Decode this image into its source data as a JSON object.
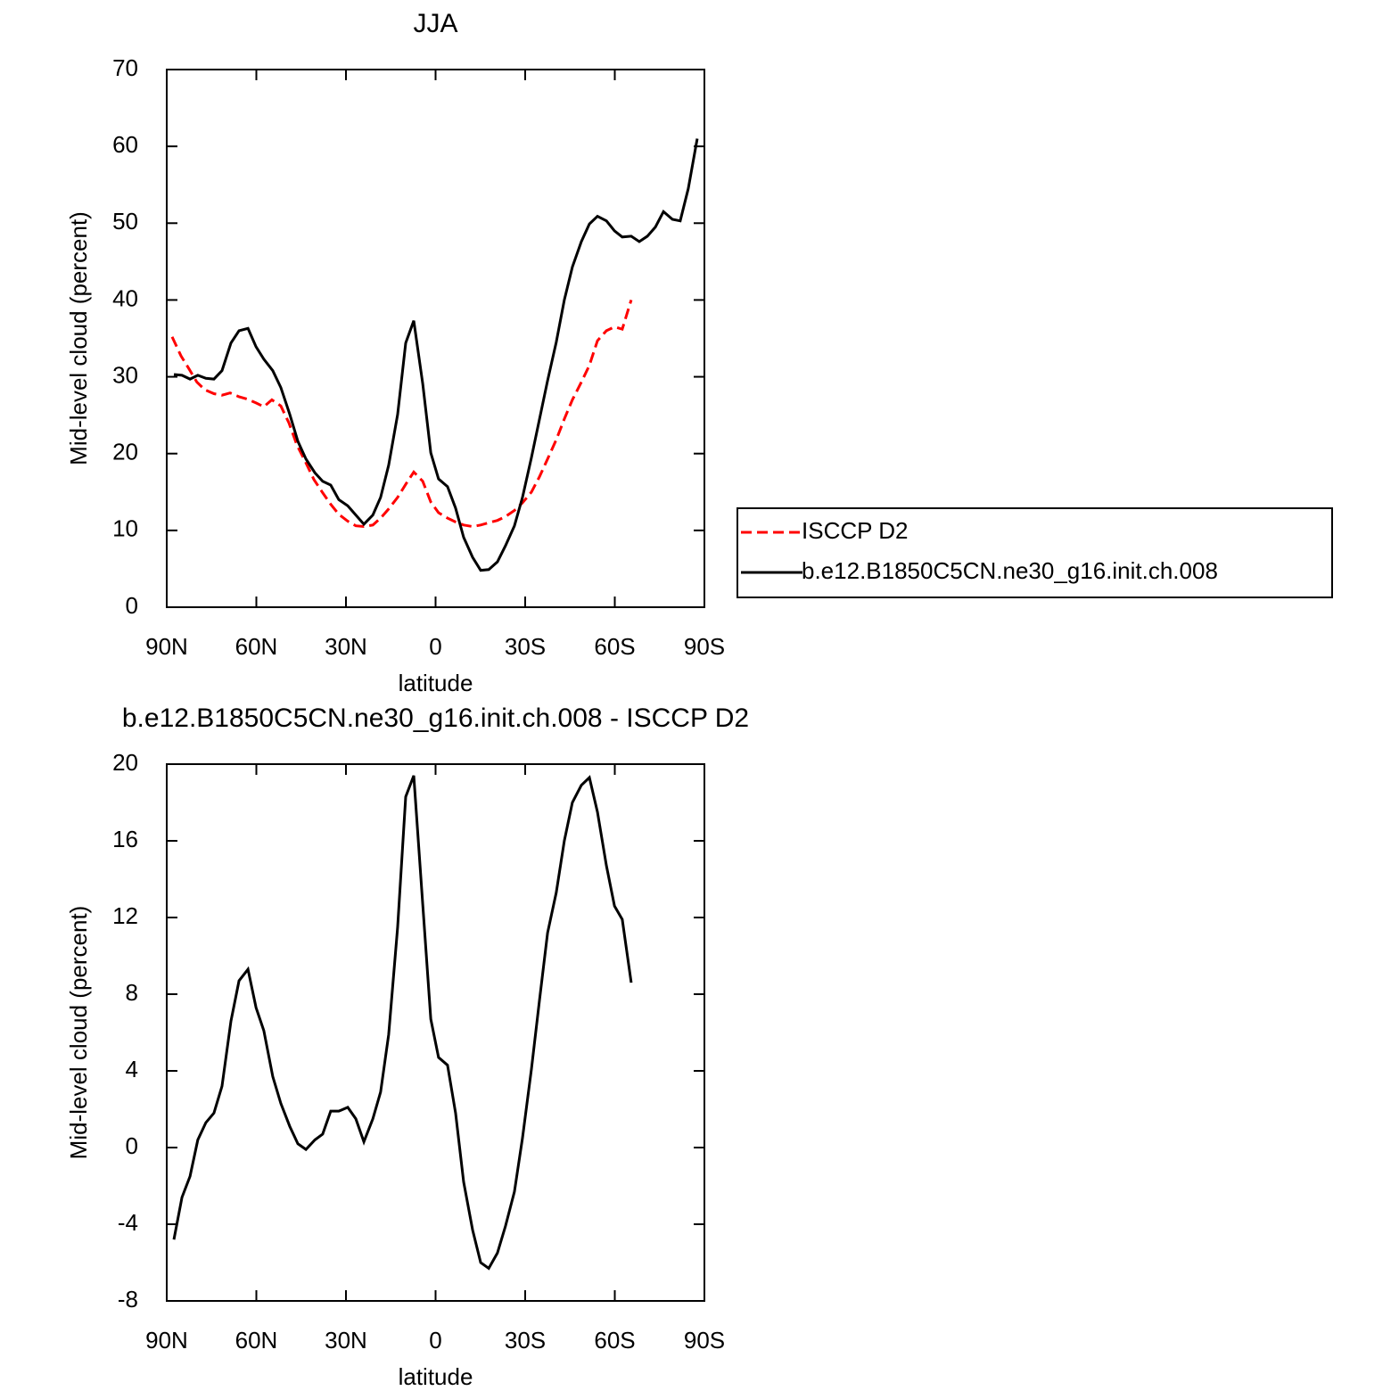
{
  "chart_data": [
    {
      "type": "line",
      "title": "JJA",
      "xlabel": "latitude",
      "ylabel": "Mid-level cloud (percent)",
      "xlim": [
        90,
        -90
      ],
      "xticks": [
        {
          "value": 90,
          "label": "90N"
        },
        {
          "value": 60,
          "label": "60N"
        },
        {
          "value": 30,
          "label": "30N"
        },
        0,
        {
          "value": -30,
          "label": "30S"
        },
        {
          "value": -60,
          "label": "60S"
        },
        {
          "value": -90,
          "label": "90S"
        }
      ],
      "ylim": [
        0,
        70
      ],
      "yticks": [
        0,
        10,
        20,
        30,
        40,
        50,
        60,
        70
      ],
      "legend": "right",
      "series": [
        {
          "name": "ISCCP D2",
          "color": "#ff0000",
          "dashed": true,
          "x": [
            88.2,
            85.2,
            82.5,
            79.9,
            77.2,
            74.2,
            71.5,
            68.8,
            65.8,
            63.1,
            60.1,
            57.5,
            54.8,
            51.8,
            49.1,
            46.4,
            43.4,
            40.7,
            37.8,
            35.1,
            32.4,
            29.4,
            26.7,
            24.0,
            21.0,
            18.4,
            15.7,
            12.7,
            10.0,
            7.3,
            4.3,
            1.6,
            -1.0,
            -4.0,
            -6.7,
            -9.4,
            -12.4,
            -15.1,
            -17.8,
            -20.7,
            -23.4,
            -26.4,
            -29.1,
            -32.1,
            -34.8,
            -37.5,
            -40.4,
            -43.1,
            -45.8,
            -48.8,
            -51.5,
            -54.2,
            -57.2,
            -59.9,
            -62.5,
            -65.5
          ],
          "values": [
            35.2,
            32.7,
            31.0,
            29.3,
            28.3,
            27.8,
            27.6,
            27.9,
            27.4,
            27.1,
            26.6,
            26.1,
            27.0,
            26.2,
            24.0,
            21.1,
            18.8,
            16.6,
            14.9,
            13.4,
            12.1,
            11.2,
            10.6,
            10.5,
            10.7,
            11.6,
            12.8,
            14.3,
            16.0,
            17.6,
            16.4,
            13.7,
            12.3,
            11.6,
            11.1,
            10.7,
            10.5,
            10.7,
            11.0,
            11.3,
            11.8,
            12.6,
            13.6,
            15.0,
            17.0,
            19.3,
            21.8,
            24.5,
            27.0,
            29.3,
            31.5,
            34.7,
            36.0,
            36.5,
            36.2,
            40.0
          ]
        },
        {
          "name": "b.e12.B1850C5CN.ne30_g16.init.ch.008",
          "color": "#000000",
          "dashed": false,
          "x": [
            87.6,
            84.9,
            82.2,
            79.6,
            76.9,
            74.2,
            71.5,
            68.5,
            65.8,
            62.8,
            60.1,
            57.5,
            54.5,
            51.8,
            48.8,
            46.1,
            43.4,
            40.4,
            37.8,
            35.1,
            32.4,
            29.4,
            26.7,
            24.0,
            21.0,
            18.4,
            15.7,
            12.7,
            10.0,
            7.3,
            4.3,
            1.6,
            -1.0,
            -4.0,
            -6.7,
            -9.4,
            -12.4,
            -15.1,
            -17.8,
            -20.7,
            -23.4,
            -26.4,
            -29.1,
            -32.1,
            -34.8,
            -37.5,
            -40.4,
            -43.1,
            -45.8,
            -48.8,
            -51.5,
            -54.2,
            -57.2,
            -59.9,
            -62.5,
            -65.5,
            -68.2,
            -70.9,
            -73.6,
            -76.3,
            -79.3,
            -81.9,
            -84.6,
            -87.6
          ],
          "values": [
            30.3,
            30.2,
            29.7,
            30.2,
            29.8,
            29.7,
            30.8,
            34.4,
            36.0,
            36.3,
            33.9,
            32.3,
            30.8,
            28.6,
            25.1,
            21.6,
            19.3,
            17.5,
            16.4,
            15.9,
            14.0,
            13.2,
            12.0,
            10.8,
            12.0,
            14.3,
            18.5,
            25.1,
            34.4,
            37.3,
            29.1,
            20.1,
            16.7,
            15.7,
            12.9,
            9.1,
            6.5,
            4.8,
            4.9,
            5.9,
            8.0,
            10.6,
            14.3,
            19.5,
            24.5,
            29.5,
            34.5,
            40.0,
            44.3,
            47.6,
            49.9,
            50.9,
            50.3,
            49.0,
            48.2,
            48.3,
            47.6,
            48.3,
            49.5,
            51.5,
            50.5,
            50.3,
            54.5,
            61.0
          ]
        }
      ]
    },
    {
      "type": "line",
      "title": "b.e12.B1850C5CN.ne30_g16.init.ch.008 - ISCCP D2",
      "xlabel": "latitude",
      "ylabel": "Mid-level cloud (percent)",
      "xlim": [
        90,
        -90
      ],
      "xticks": [
        {
          "value": 90,
          "label": "90N"
        },
        {
          "value": 60,
          "label": "60N"
        },
        {
          "value": 30,
          "label": "30N"
        },
        0,
        {
          "value": -30,
          "label": "30S"
        },
        {
          "value": -60,
          "label": "60S"
        },
        {
          "value": -90,
          "label": "90S"
        }
      ],
      "ylim": [
        -8,
        20
      ],
      "yticks": [
        -8,
        -4,
        0,
        4,
        8,
        12,
        16,
        20
      ],
      "series": [
        {
          "color": "#000000",
          "dashed": false,
          "x": [
            87.6,
            84.9,
            82.2,
            79.6,
            76.9,
            74.2,
            71.5,
            68.5,
            65.8,
            62.8,
            60.1,
            57.5,
            54.5,
            51.8,
            48.8,
            46.1,
            43.4,
            40.4,
            37.8,
            35.1,
            32.4,
            29.4,
            26.7,
            24.0,
            21.0,
            18.4,
            15.7,
            12.7,
            10.0,
            7.3,
            4.3,
            1.6,
            -1.0,
            -4.0,
            -6.7,
            -9.4,
            -12.4,
            -15.1,
            -17.8,
            -20.7,
            -23.4,
            -26.4,
            -29.1,
            -32.1,
            -34.8,
            -37.5,
            -40.4,
            -43.1,
            -45.8,
            -48.8,
            -51.5,
            -54.2,
            -57.2,
            -59.9,
            -62.5,
            -65.5
          ],
          "values": [
            -4.8,
            -2.6,
            -1.5,
            0.4,
            1.3,
            1.8,
            3.2,
            6.6,
            8.7,
            9.3,
            7.3,
            6.1,
            3.7,
            2.3,
            1.1,
            0.2,
            -0.1,
            0.4,
            0.7,
            1.9,
            1.9,
            2.1,
            1.5,
            0.3,
            1.5,
            2.9,
            5.9,
            11.5,
            18.3,
            19.4,
            12.7,
            6.7,
            4.7,
            4.3,
            1.8,
            -1.8,
            -4.3,
            -6.0,
            -6.3,
            -5.5,
            -4.1,
            -2.3,
            0.5,
            4.1,
            7.7,
            11.2,
            13.3,
            16.0,
            18.0,
            18.9,
            19.3,
            17.5,
            14.7,
            12.6,
            11.9,
            8.6
          ]
        }
      ]
    }
  ]
}
